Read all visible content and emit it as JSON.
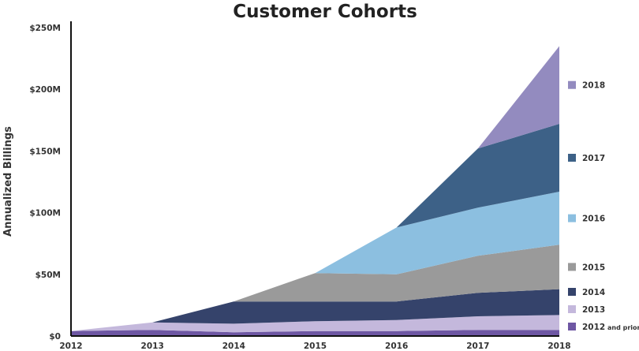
{
  "chart_data": {
    "type": "area",
    "stacked": true,
    "title": "Customer Cohorts",
    "ylabel": "Annualized Billings",
    "xlabel": "",
    "x": [
      "2012",
      "2013",
      "2014",
      "2015",
      "2016",
      "2017",
      "2018"
    ],
    "ylim": [
      0,
      250
    ],
    "yticks": [
      {
        "value": 0,
        "label": "$0"
      },
      {
        "value": 50,
        "label": "$50M"
      },
      {
        "value": 100,
        "label": "$100M"
      },
      {
        "value": 150,
        "label": "$150M"
      },
      {
        "value": 200,
        "label": "$200M"
      },
      {
        "value": 250,
        "label": "$250M"
      }
    ],
    "grid": false,
    "legend_position": "right",
    "series": [
      {
        "name": "2012 and prior",
        "color": "#6e57a3",
        "start": 0,
        "values": [
          4,
          5,
          3,
          4,
          4,
          5,
          5
        ]
      },
      {
        "name": "2013",
        "color": "#c4b8dc",
        "start": 0,
        "values": [
          0,
          6,
          7,
          8,
          9,
          11,
          12
        ]
      },
      {
        "name": "2014",
        "color": "#35436b",
        "start": 1,
        "values": [
          0,
          0,
          18,
          16,
          15,
          19,
          21
        ]
      },
      {
        "name": "2015",
        "color": "#9a9a9a",
        "start": 2,
        "values": [
          0,
          0,
          0,
          23,
          22,
          30,
          36
        ]
      },
      {
        "name": "2016",
        "color": "#8cbfe0",
        "start": 3,
        "values": [
          0,
          0,
          0,
          0,
          38,
          39,
          43
        ]
      },
      {
        "name": "2017",
        "color": "#3d6187",
        "start": 4,
        "values": [
          0,
          0,
          0,
          0,
          0,
          48,
          55
        ]
      },
      {
        "name": "2018",
        "color": "#938bbf",
        "start": 5,
        "values": [
          0,
          0,
          0,
          0,
          0,
          0,
          63
        ]
      }
    ]
  }
}
